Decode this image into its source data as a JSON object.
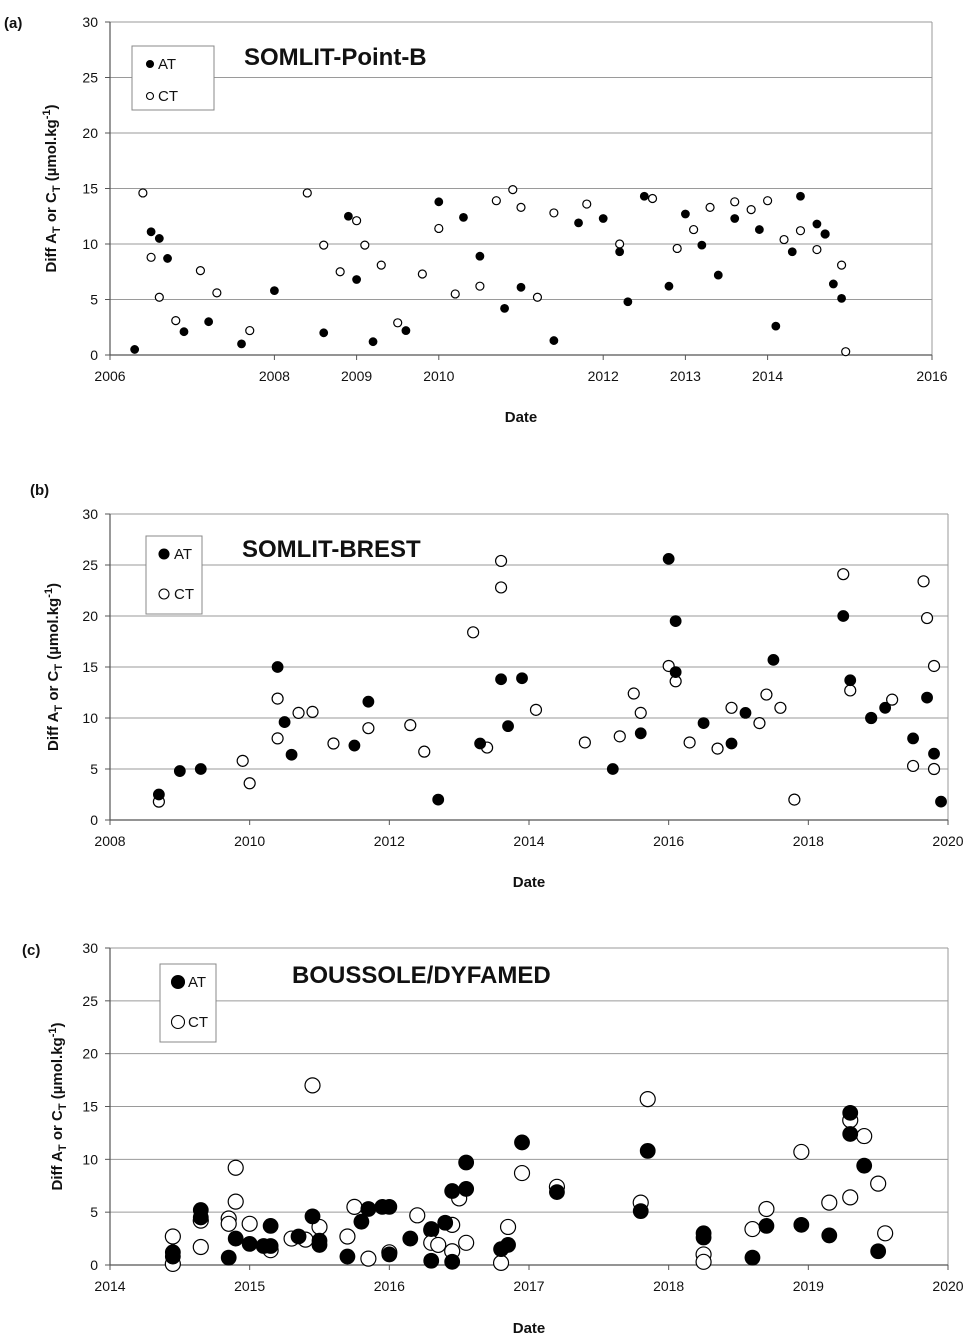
{
  "chart_data": [
    {
      "type": "scatter",
      "panel_label": "(a)",
      "title": "SOMLIT-Point-B",
      "xlabel": "Date",
      "ylabel": "Diff A_T or C_T (µmol.kg⁻¹)",
      "xlim": [
        2006,
        2016
      ],
      "ylim": [
        0,
        30
      ],
      "xticks": [
        2006,
        2008,
        2009,
        2010,
        2012,
        2013,
        2014,
        2016
      ],
      "yticks": [
        0,
        5,
        10,
        15,
        20,
        25,
        30
      ],
      "grid": true,
      "legend_position": "top-left",
      "series": [
        {
          "name": "AT",
          "marker": "filled-circle",
          "color": "#000000",
          "points": [
            [
              2006.3,
              0.5
            ],
            [
              2006.5,
              11.1
            ],
            [
              2006.6,
              10.5
            ],
            [
              2006.7,
              8.7
            ],
            [
              2006.9,
              2.1
            ],
            [
              2007.2,
              3.0
            ],
            [
              2007.6,
              1.0
            ],
            [
              2008.0,
              5.8
            ],
            [
              2008.6,
              2.0
            ],
            [
              2008.9,
              12.5
            ],
            [
              2009.0,
              6.8
            ],
            [
              2009.2,
              1.2
            ],
            [
              2009.6,
              2.2
            ],
            [
              2010.0,
              13.8
            ],
            [
              2010.3,
              12.4
            ],
            [
              2010.5,
              8.9
            ],
            [
              2010.8,
              4.2
            ],
            [
              2011.0,
              6.1
            ],
            [
              2011.4,
              1.3
            ],
            [
              2011.7,
              11.9
            ],
            [
              2012.0,
              12.3
            ],
            [
              2012.2,
              9.3
            ],
            [
              2012.3,
              4.8
            ],
            [
              2012.5,
              14.3
            ],
            [
              2012.8,
              6.2
            ],
            [
              2013.0,
              12.7
            ],
            [
              2013.2,
              9.9
            ],
            [
              2013.4,
              7.2
            ],
            [
              2013.6,
              12.3
            ],
            [
              2013.9,
              11.3
            ],
            [
              2014.1,
              2.6
            ],
            [
              2014.3,
              9.3
            ],
            [
              2014.4,
              14.3
            ],
            [
              2014.6,
              11.8
            ],
            [
              2014.7,
              10.9
            ],
            [
              2014.8,
              6.4
            ],
            [
              2014.9,
              5.1
            ]
          ]
        },
        {
          "name": "CT",
          "marker": "open-circle",
          "color": "#000000",
          "points": [
            [
              2006.4,
              14.6
            ],
            [
              2006.5,
              8.8
            ],
            [
              2006.6,
              5.2
            ],
            [
              2006.8,
              3.1
            ],
            [
              2007.1,
              7.6
            ],
            [
              2007.3,
              5.6
            ],
            [
              2007.7,
              2.2
            ],
            [
              2008.4,
              14.6
            ],
            [
              2008.6,
              9.9
            ],
            [
              2008.8,
              7.5
            ],
            [
              2009.0,
              12.1
            ],
            [
              2009.1,
              9.9
            ],
            [
              2009.3,
              8.1
            ],
            [
              2009.5,
              2.9
            ],
            [
              2009.8,
              7.3
            ],
            [
              2010.0,
              11.4
            ],
            [
              2010.2,
              5.5
            ],
            [
              2010.5,
              6.2
            ],
            [
              2010.7,
              13.9
            ],
            [
              2010.9,
              14.9
            ],
            [
              2011.0,
              13.3
            ],
            [
              2011.2,
              5.2
            ],
            [
              2011.4,
              12.8
            ],
            [
              2011.8,
              13.6
            ],
            [
              2012.2,
              10.0
            ],
            [
              2012.6,
              14.1
            ],
            [
              2012.9,
              9.6
            ],
            [
              2013.1,
              11.3
            ],
            [
              2013.3,
              13.3
            ],
            [
              2013.6,
              13.8
            ],
            [
              2013.8,
              13.1
            ],
            [
              2014.0,
              13.9
            ],
            [
              2014.2,
              10.4
            ],
            [
              2014.4,
              11.2
            ],
            [
              2014.6,
              9.5
            ],
            [
              2014.7,
              10.9
            ],
            [
              2014.9,
              8.1
            ],
            [
              2014.95,
              0.3
            ]
          ]
        }
      ]
    },
    {
      "type": "scatter",
      "panel_label": "(b)",
      "title": "SOMLIT-BREST",
      "xlabel": "Date",
      "ylabel": "Diff A_T or C_T (µmol.kg⁻¹)",
      "xlim": [
        2008,
        2020
      ],
      "ylim": [
        0,
        30
      ],
      "xticks": [
        2008,
        2010,
        2012,
        2014,
        2016,
        2018,
        2020
      ],
      "yticks": [
        0,
        5,
        10,
        15,
        20,
        25,
        30
      ],
      "grid": true,
      "legend_position": "top-left",
      "series": [
        {
          "name": "AT",
          "marker": "filled-circle",
          "color": "#000000",
          "points": [
            [
              2008.7,
              2.5
            ],
            [
              2009.0,
              4.8
            ],
            [
              2009.3,
              5.0
            ],
            [
              2010.4,
              15.0
            ],
            [
              2010.5,
              9.6
            ],
            [
              2010.6,
              6.4
            ],
            [
              2011.5,
              7.3
            ],
            [
              2011.7,
              11.6
            ],
            [
              2012.7,
              2.0
            ],
            [
              2013.3,
              7.5
            ],
            [
              2013.6,
              13.8
            ],
            [
              2013.7,
              9.2
            ],
            [
              2013.9,
              13.9
            ],
            [
              2015.2,
              5.0
            ],
            [
              2015.6,
              8.5
            ],
            [
              2016.0,
              25.6
            ],
            [
              2016.1,
              19.5
            ],
            [
              2016.1,
              14.5
            ],
            [
              2016.5,
              9.5
            ],
            [
              2016.9,
              7.5
            ],
            [
              2017.1,
              10.5
            ],
            [
              2017.5,
              15.7
            ],
            [
              2018.5,
              20.0
            ],
            [
              2018.6,
              13.7
            ],
            [
              2018.9,
              10.0
            ],
            [
              2019.1,
              11.0
            ],
            [
              2019.5,
              8.0
            ],
            [
              2019.7,
              12.0
            ],
            [
              2019.8,
              6.5
            ],
            [
              2019.9,
              1.8
            ]
          ]
        },
        {
          "name": "CT",
          "marker": "open-circle",
          "color": "#000000",
          "points": [
            [
              2008.7,
              1.8
            ],
            [
              2009.9,
              5.8
            ],
            [
              2010.0,
              3.6
            ],
            [
              2010.4,
              11.9
            ],
            [
              2010.4,
              8.0
            ],
            [
              2010.7,
              10.5
            ],
            [
              2010.9,
              10.6
            ],
            [
              2011.2,
              7.5
            ],
            [
              2011.7,
              9.0
            ],
            [
              2012.3,
              9.3
            ],
            [
              2012.5,
              6.7
            ],
            [
              2013.2,
              18.4
            ],
            [
              2013.4,
              7.1
            ],
            [
              2013.6,
              25.4
            ],
            [
              2013.6,
              22.8
            ],
            [
              2014.1,
              10.8
            ],
            [
              2014.8,
              7.6
            ],
            [
              2015.3,
              8.2
            ],
            [
              2015.5,
              12.4
            ],
            [
              2015.6,
              10.5
            ],
            [
              2016.0,
              15.1
            ],
            [
              2016.1,
              13.6
            ],
            [
              2016.3,
              7.6
            ],
            [
              2016.7,
              7.0
            ],
            [
              2016.9,
              11.0
            ],
            [
              2017.3,
              9.5
            ],
            [
              2017.4,
              12.3
            ],
            [
              2017.6,
              11.0
            ],
            [
              2017.8,
              2.0
            ],
            [
              2018.5,
              24.1
            ],
            [
              2018.6,
              12.7
            ],
            [
              2018.9,
              10.0
            ],
            [
              2019.2,
              11.8
            ],
            [
              2019.5,
              5.3
            ],
            [
              2019.65,
              23.4
            ],
            [
              2019.7,
              19.8
            ],
            [
              2019.8,
              15.1
            ],
            [
              2019.8,
              5.0
            ]
          ]
        }
      ]
    },
    {
      "type": "scatter",
      "panel_label": "(c)",
      "title": "BOUSSOLE/DYFAMED",
      "xlabel": "Date",
      "ylabel": "Diff A_T or C_T (µmol.kg⁻¹)",
      "xlim": [
        2014,
        2020
      ],
      "ylim": [
        0,
        30
      ],
      "xticks": [
        2014,
        2015,
        2016,
        2017,
        2018,
        2019,
        2020
      ],
      "yticks": [
        0,
        5,
        10,
        15,
        20,
        25,
        30
      ],
      "grid": true,
      "legend_position": "top-left",
      "series": [
        {
          "name": "AT",
          "marker": "filled-circle",
          "color": "#000000",
          "points": [
            [
              2014.45,
              1.2
            ],
            [
              2014.45,
              0.8
            ],
            [
              2014.65,
              5.2
            ],
            [
              2014.65,
              4.5
            ],
            [
              2014.85,
              0.7
            ],
            [
              2014.9,
              2.5
            ],
            [
              2015.0,
              2.0
            ],
            [
              2015.1,
              1.8
            ],
            [
              2015.15,
              1.8
            ],
            [
              2015.15,
              3.7
            ],
            [
              2015.35,
              2.7
            ],
            [
              2015.45,
              4.6
            ],
            [
              2015.5,
              2.3
            ],
            [
              2015.5,
              1.9
            ],
            [
              2015.7,
              0.8
            ],
            [
              2015.8,
              4.1
            ],
            [
              2015.85,
              5.3
            ],
            [
              2015.95,
              5.5
            ],
            [
              2016.0,
              5.5
            ],
            [
              2016.0,
              1.0
            ],
            [
              2016.15,
              2.5
            ],
            [
              2016.3,
              3.4
            ],
            [
              2016.3,
              0.4
            ],
            [
              2016.4,
              4.0
            ],
            [
              2016.45,
              0.3
            ],
            [
              2016.45,
              7.0
            ],
            [
              2016.55,
              7.2
            ],
            [
              2016.55,
              9.7
            ],
            [
              2016.8,
              1.5
            ],
            [
              2016.85,
              1.9
            ],
            [
              2016.95,
              11.6
            ],
            [
              2017.2,
              6.9
            ],
            [
              2017.8,
              5.1
            ],
            [
              2017.85,
              10.8
            ],
            [
              2018.25,
              3.0
            ],
            [
              2018.25,
              2.6
            ],
            [
              2018.6,
              0.7
            ],
            [
              2018.7,
              3.7
            ],
            [
              2018.95,
              3.8
            ],
            [
              2019.15,
              2.8
            ],
            [
              2019.3,
              14.4
            ],
            [
              2019.3,
              12.4
            ],
            [
              2019.4,
              9.4
            ],
            [
              2019.5,
              1.3
            ]
          ]
        },
        {
          "name": "CT",
          "marker": "open-circle",
          "color": "#000000",
          "points": [
            [
              2014.45,
              2.7
            ],
            [
              2014.45,
              0.1
            ],
            [
              2014.65,
              4.2
            ],
            [
              2014.65,
              1.7
            ],
            [
              2014.85,
              4.4
            ],
            [
              2014.85,
              3.9
            ],
            [
              2014.9,
              9.2
            ],
            [
              2014.9,
              6.0
            ],
            [
              2015.0,
              3.9
            ],
            [
              2015.15,
              1.4
            ],
            [
              2015.3,
              2.5
            ],
            [
              2015.4,
              2.4
            ],
            [
              2015.45,
              17.0
            ],
            [
              2015.5,
              3.6
            ],
            [
              2015.7,
              2.7
            ],
            [
              2015.75,
              5.5
            ],
            [
              2015.85,
              0.6
            ],
            [
              2016.0,
              1.2
            ],
            [
              2016.2,
              4.7
            ],
            [
              2016.3,
              3.3
            ],
            [
              2016.3,
              2.1
            ],
            [
              2016.35,
              1.9
            ],
            [
              2016.45,
              1.3
            ],
            [
              2016.45,
              3.8
            ],
            [
              2016.5,
              6.3
            ],
            [
              2016.55,
              2.1
            ],
            [
              2016.8,
              0.2
            ],
            [
              2016.85,
              3.6
            ],
            [
              2016.95,
              8.7
            ],
            [
              2017.2,
              7.4
            ],
            [
              2017.8,
              5.9
            ],
            [
              2017.85,
              15.7
            ],
            [
              2018.25,
              1.0
            ],
            [
              2018.25,
              0.3
            ],
            [
              2018.6,
              3.4
            ],
            [
              2018.7,
              5.3
            ],
            [
              2018.95,
              10.7
            ],
            [
              2019.15,
              5.9
            ],
            [
              2019.3,
              13.7
            ],
            [
              2019.3,
              6.4
            ],
            [
              2019.4,
              12.2
            ],
            [
              2019.5,
              7.7
            ],
            [
              2019.55,
              3.0
            ]
          ]
        }
      ]
    }
  ]
}
